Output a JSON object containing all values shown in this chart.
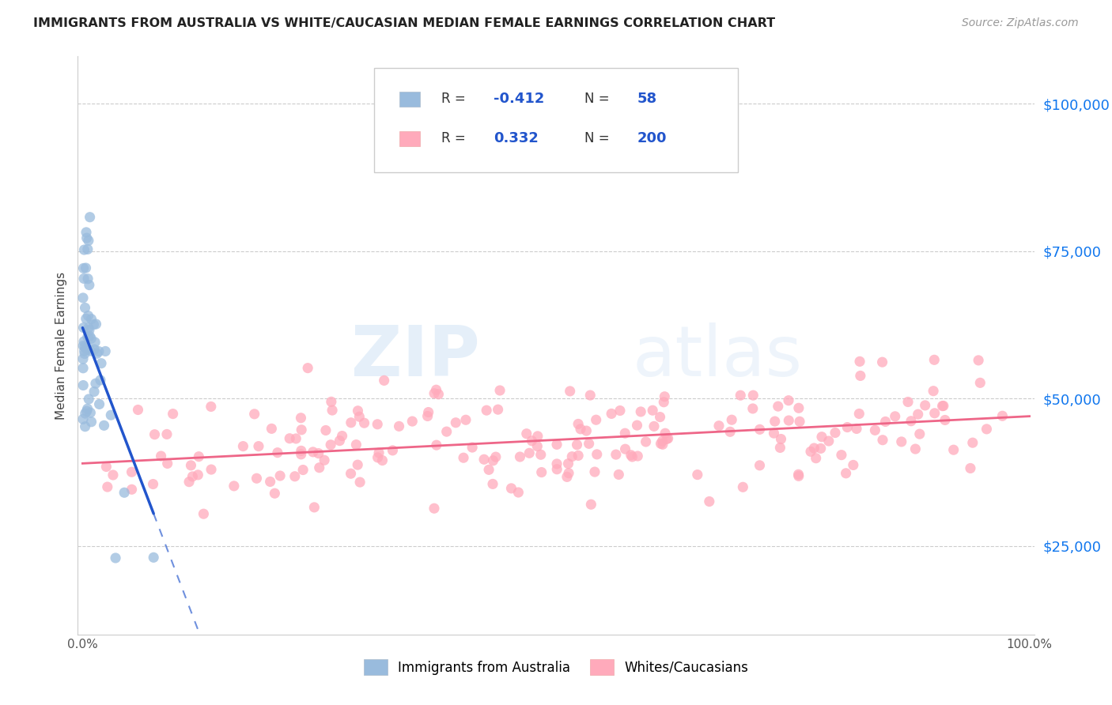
{
  "title": "IMMIGRANTS FROM AUSTRALIA VS WHITE/CAUCASIAN MEDIAN FEMALE EARNINGS CORRELATION CHART",
  "source": "Source: ZipAtlas.com",
  "ylabel": "Median Female Earnings",
  "ytick_labels": [
    "$25,000",
    "$50,000",
    "$75,000",
    "$100,000"
  ],
  "ytick_values": [
    25000,
    50000,
    75000,
    100000
  ],
  "ymin": 10000,
  "ymax": 108000,
  "xmin": -0.005,
  "xmax": 1.005,
  "legend_R1": "-0.412",
  "legend_N1": "58",
  "legend_R2": "0.332",
  "legend_N2": "200",
  "blue_color": "#99BBDD",
  "pink_color": "#FFAABB",
  "blue_line_color": "#2255CC",
  "pink_line_color": "#EE6688",
  "watermark_zip": "ZIP",
  "watermark_atlas": "atlas",
  "grid_color": "#CCCCCC",
  "spine_color": "#CCCCCC",
  "right_tick_color": "#1177EE"
}
